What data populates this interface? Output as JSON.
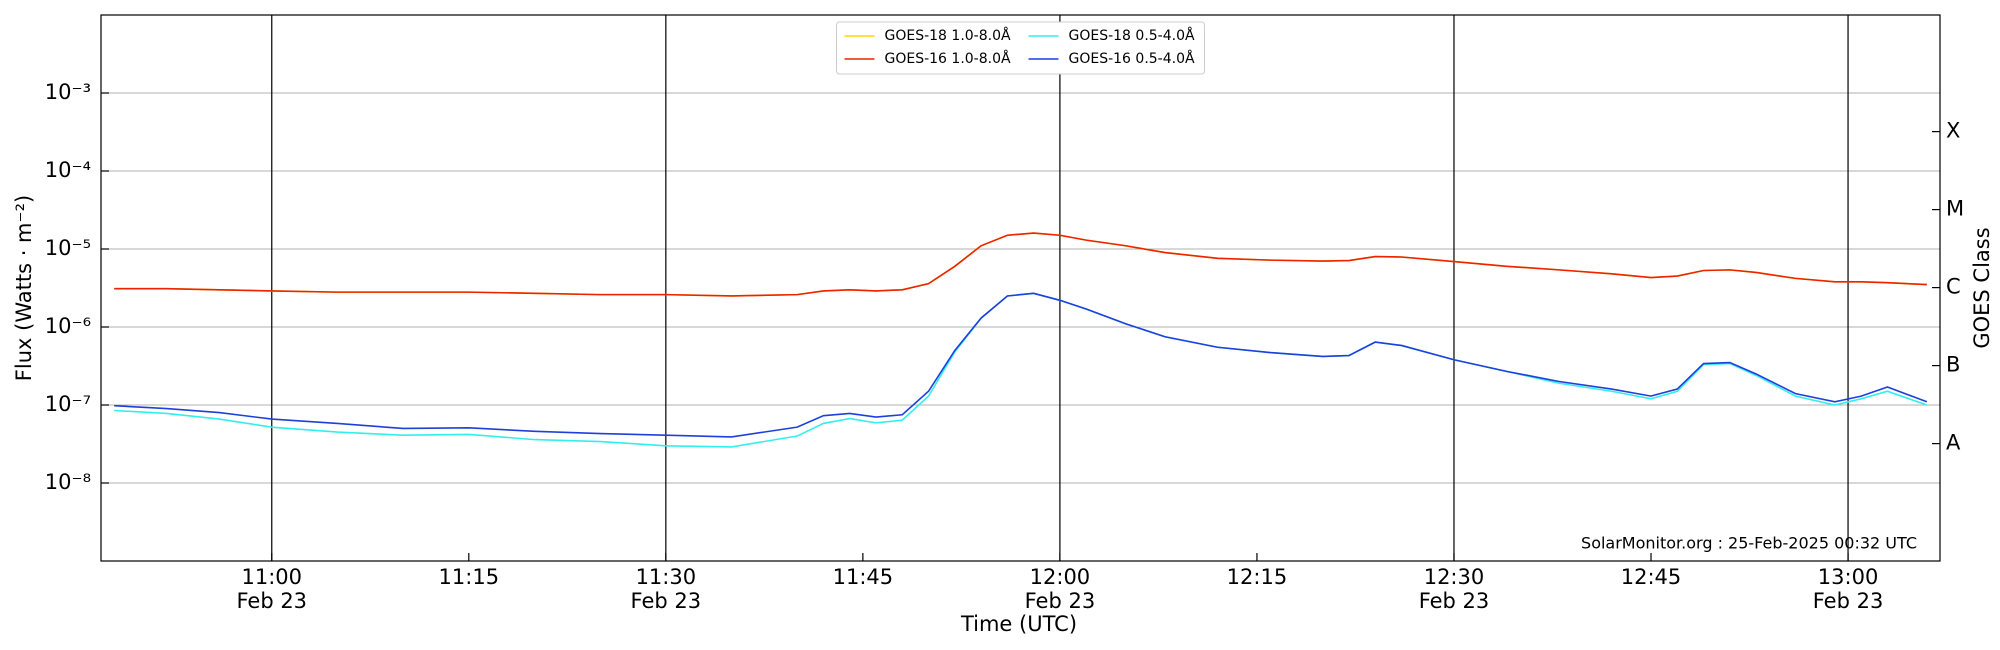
{
  "chart_data": {
    "type": "line",
    "xlabel": "Time (UTC)",
    "ylabel": "Flux (Watts · m⁻²)",
    "y2label": "GOES Class",
    "annotation": "SolarMonitor.org : 25-Feb-2025 00:32 UTC",
    "yscale": "log",
    "grid": true,
    "legend": "upper center",
    "xlim": [
      "10:47",
      "13:07"
    ],
    "ylim": [
      1e-09,
      0.01
    ],
    "y2lim": [
      1e-09,
      0.01
    ],
    "yticks": [
      {
        "value": 1e-08,
        "label": "10⁻⁸"
      },
      {
        "value": 1e-07,
        "label": "10⁻⁷"
      },
      {
        "value": 1e-06,
        "label": "10⁻⁶"
      },
      {
        "value": 1e-05,
        "label": "10⁻⁵"
      },
      {
        "value": 0.0001,
        "label": "10⁻⁴"
      },
      {
        "value": 0.001,
        "label": "10⁻³"
      }
    ],
    "y2ticks": [
      {
        "value": 3.2e-08,
        "label": "A"
      },
      {
        "value": 3.2e-07,
        "label": "B"
      },
      {
        "value": 3.2e-06,
        "label": "C"
      },
      {
        "value": 3.2e-05,
        "label": "M"
      },
      {
        "value": 0.00032,
        "label": "X"
      }
    ],
    "xticks": [
      {
        "value": "11:00",
        "label": "11:00\nFeb 23"
      },
      "11:15",
      {
        "value": "11:30",
        "label": "11:30\nFeb 23"
      },
      "11:45",
      {
        "value": "12:00",
        "label": "12:00\nFeb 23"
      },
      "12:15",
      {
        "value": "12:30",
        "label": "12:30\nFeb 23"
      },
      "12:45",
      {
        "value": "13:00",
        "label": "13:00\nFeb 23"
      }
    ],
    "x": [
      "10:48",
      "10:52",
      "10:56",
      "11:00",
      "11:05",
      "11:10",
      "11:15",
      "11:20",
      "11:25",
      "11:30",
      "11:35",
      "11:40",
      "11:42",
      "11:44",
      "11:46",
      "11:48",
      "11:50",
      "11:52",
      "11:54",
      "11:56",
      "11:58",
      "12:00",
      "12:02",
      "12:05",
      "12:08",
      "12:12",
      "12:16",
      "12:20",
      "12:22",
      "12:24",
      "12:26",
      "12:30",
      "12:34",
      "12:38",
      "12:42",
      "12:45",
      "12:47",
      "12:49",
      "12:51",
      "12:53",
      "12:56",
      "12:59",
      "13:01",
      "13:03",
      "13:06"
    ],
    "series": [
      {
        "name": "GOES-18 1.0-8.0Å",
        "color": "#ffd700",
        "values": [
          3.1e-06,
          3.1e-06,
          3e-06,
          2.9e-06,
          2.8e-06,
          2.8e-06,
          2.8e-06,
          2.7e-06,
          2.6e-06,
          2.6e-06,
          2.5e-06,
          2.6e-06,
          2.9e-06,
          3e-06,
          2.9e-06,
          3e-06,
          3.6e-06,
          6e-06,
          1.1e-05,
          1.5e-05,
          1.6e-05,
          1.5e-05,
          1.3e-05,
          1.1e-05,
          9e-06,
          7.6e-06,
          7.2e-06,
          7e-06,
          7.1e-06,
          8e-06,
          7.9e-06,
          6.9e-06,
          6e-06,
          5.4e-06,
          4.8e-06,
          4.3e-06,
          4.5e-06,
          5.3e-06,
          5.4e-06,
          5e-06,
          4.2e-06,
          3.8e-06,
          3.8e-06,
          3.7e-06,
          3.5e-06
        ]
      },
      {
        "name": "GOES-16 1.0-8.0Å",
        "color": "#ee2200",
        "values": [
          3.1e-06,
          3.1e-06,
          3e-06,
          2.9e-06,
          2.8e-06,
          2.8e-06,
          2.8e-06,
          2.7e-06,
          2.6e-06,
          2.6e-06,
          2.5e-06,
          2.6e-06,
          2.9e-06,
          3e-06,
          2.9e-06,
          3e-06,
          3.6e-06,
          6e-06,
          1.1e-05,
          1.5e-05,
          1.6e-05,
          1.5e-05,
          1.3e-05,
          1.1e-05,
          9e-06,
          7.6e-06,
          7.2e-06,
          7e-06,
          7.1e-06,
          8e-06,
          7.9e-06,
          6.9e-06,
          6e-06,
          5.4e-06,
          4.8e-06,
          4.3e-06,
          4.5e-06,
          5.3e-06,
          5.4e-06,
          5e-06,
          4.2e-06,
          3.8e-06,
          3.8e-06,
          3.7e-06,
          3.5e-06
        ]
      },
      {
        "name": "GOES-18 0.5-4.0Å",
        "color": "#33eeee",
        "values": [
          8.5e-08,
          7.8e-08,
          6.6e-08,
          5.2e-08,
          4.5e-08,
          4.1e-08,
          4.2e-08,
          3.6e-08,
          3.4e-08,
          3e-08,
          2.9e-08,
          4e-08,
          5.8e-08,
          6.7e-08,
          5.9e-08,
          6.4e-08,
          1.3e-07,
          4.8e-07,
          1.3e-06,
          2.5e-06,
          2.7e-06,
          2.2e-06,
          1.7e-06,
          1.1e-06,
          7.5e-07,
          5.5e-07,
          4.7e-07,
          4.2e-07,
          4.3e-07,
          6.4e-07,
          5.8e-07,
          3.8e-07,
          2.7e-07,
          1.9e-07,
          1.5e-07,
          1.2e-07,
          1.5e-07,
          3.3e-07,
          3.4e-07,
          2.4e-07,
          1.3e-07,
          1e-07,
          1.2e-07,
          1.5e-07,
          1e-07
        ]
      },
      {
        "name": "GOES-16 0.5-4.0Å",
        "color": "#1f3fdd",
        "values": [
          9.8e-08,
          9e-08,
          8e-08,
          6.6e-08,
          5.8e-08,
          5e-08,
          5.1e-08,
          4.6e-08,
          4.3e-08,
          4.1e-08,
          3.9e-08,
          5.2e-08,
          7.3e-08,
          7.8e-08,
          7e-08,
          7.5e-08,
          1.5e-07,
          5e-07,
          1.3e-06,
          2.5e-06,
          2.7e-06,
          2.2e-06,
          1.7e-06,
          1.1e-06,
          7.5e-07,
          5.5e-07,
          4.7e-07,
          4.2e-07,
          4.3e-07,
          6.4e-07,
          5.8e-07,
          3.8e-07,
          2.7e-07,
          2e-07,
          1.6e-07,
          1.3e-07,
          1.6e-07,
          3.4e-07,
          3.5e-07,
          2.5e-07,
          1.4e-07,
          1.1e-07,
          1.3e-07,
          1.7e-07,
          1.1e-07
        ]
      }
    ]
  }
}
